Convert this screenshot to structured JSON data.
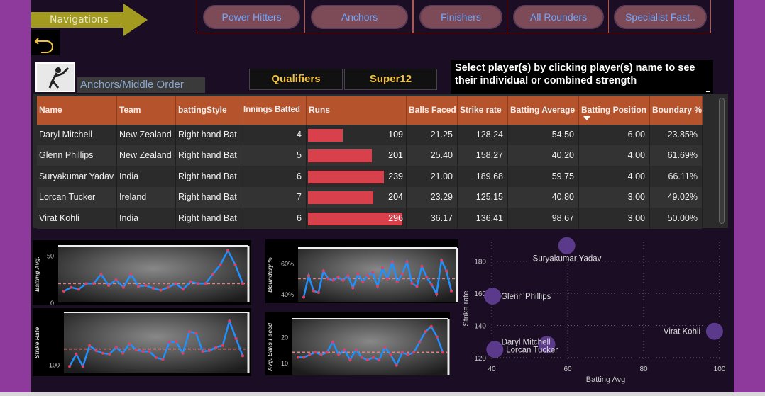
{
  "nav": {
    "label": "Navigations",
    "back_icon": "back-arrow-icon"
  },
  "categories": [
    "Power Hitters",
    "Anchors",
    "Finishers",
    "All Rounders",
    "Specialist Fast.."
  ],
  "role_label": "Anchors/Middle Order",
  "stages": [
    "Qualifiers",
    "Super12"
  ],
  "instructions": "Select player(s) by clicking player(s) name to see their individual or combined strength",
  "colors": {
    "header": "#b5532c",
    "run_bar": "#d8414b",
    "accent_text": "#f0c040",
    "line": "#1e90ff",
    "marker": "#e04060",
    "bubble": "#5b3a8c"
  },
  "table": {
    "columns": [
      "Name",
      "Team",
      "battingStyle",
      "Innings Batted",
      "Runs",
      "Balls Faced",
      "Strike rate",
      "Batting Average",
      "Batting Position",
      "Boundary %"
    ],
    "sorted_column": "Batting Position",
    "rows": [
      [
        "Daryl Mitchell",
        "New Zealand",
        "Right hand Bat",
        "4",
        "109",
        "21.25",
        "128.24",
        "54.50",
        "6.00",
        "23.85%"
      ],
      [
        "Glenn Phillips",
        "New Zealand",
        "Right hand Bat",
        "5",
        "201",
        "25.40",
        "158.27",
        "40.20",
        "4.00",
        "61.69%"
      ],
      [
        "Suryakumar Yadav",
        "India",
        "Right hand Bat",
        "6",
        "239",
        "21.00",
        "189.68",
        "59.75",
        "4.00",
        "66.11%"
      ],
      [
        "Lorcan Tucker",
        "Ireland",
        "Right hand Bat",
        "7",
        "204",
        "23.29",
        "125.15",
        "40.80",
        "3.00",
        "49.02%"
      ],
      [
        "Virat Kohli",
        "India",
        "Right hand Bat",
        "6",
        "296",
        "36.17",
        "136.41",
        "98.67",
        "3.00",
        "50.00%"
      ]
    ],
    "runs_max": 296
  },
  "chart_data": [
    {
      "type": "line",
      "title": "",
      "ylabel": "Batting Avg.",
      "yticks": [
        "0",
        "50"
      ],
      "ylim": [
        0,
        60
      ],
      "reference_line": 20,
      "values": [
        12,
        16,
        14,
        20,
        20,
        30,
        18,
        24,
        16,
        30,
        17,
        18,
        15,
        13,
        16,
        20,
        14,
        22,
        20,
        20,
        30,
        40,
        55,
        40,
        20
      ]
    },
    {
      "type": "line",
      "title": "",
      "ylabel": "Boundary %",
      "yticks": [
        "40%",
        "60%"
      ],
      "ylim": [
        35,
        70
      ],
      "reference_line": 50,
      "values": [
        38,
        52,
        42,
        41,
        55,
        50,
        49,
        51,
        49,
        52,
        44,
        53,
        48,
        52,
        54,
        45,
        57,
        50,
        61,
        48,
        53,
        61,
        47,
        45,
        58,
        51,
        46,
        40,
        62,
        55,
        42
      ]
    },
    {
      "type": "line",
      "title": "",
      "ylabel": "Strike Rate",
      "yticks": [
        "100"
      ],
      "ylim": [
        90,
        160
      ],
      "reference_line": 118,
      "values": [
        98,
        112,
        98,
        122,
        116,
        113,
        112,
        120,
        113,
        124,
        117,
        115,
        115,
        108,
        106,
        126,
        126,
        113,
        138,
        136,
        115,
        116,
        120,
        122,
        150,
        130,
        110
      ]
    },
    {
      "type": "line",
      "title": "",
      "ylabel": "Avg. Balls Faced",
      "yticks": [
        "10",
        "20"
      ],
      "ylim": [
        5,
        27
      ],
      "reference_line": 14,
      "values": [
        12,
        12,
        13,
        14,
        13,
        14,
        18,
        13,
        15,
        11,
        15,
        12,
        11,
        12,
        11,
        16,
        13,
        9,
        14,
        13,
        14,
        18,
        22,
        24,
        20,
        14
      ]
    },
    {
      "type": "scatter",
      "title": "",
      "xlabel": "Batting Avg",
      "ylabel": "Strike rate",
      "xlim": [
        40,
        100
      ],
      "ylim": [
        120,
        190
      ],
      "xticks": [
        "40",
        "60",
        "80",
        "100"
      ],
      "yticks": [
        "120",
        "140",
        "160",
        "180"
      ],
      "points": [
        {
          "name": "Suryakumar Yadav",
          "x": 59.75,
          "y": 189.68
        },
        {
          "name": "Glenn Phillips",
          "x": 40.2,
          "y": 158.27
        },
        {
          "name": "Daryl Mitchell",
          "x": 54.5,
          "y": 128.24
        },
        {
          "name": "Virat Kohli",
          "x": 98.67,
          "y": 136.41
        },
        {
          "name": "Lorcan Tucker",
          "x": 40.8,
          "y": 125.15
        }
      ]
    }
  ]
}
